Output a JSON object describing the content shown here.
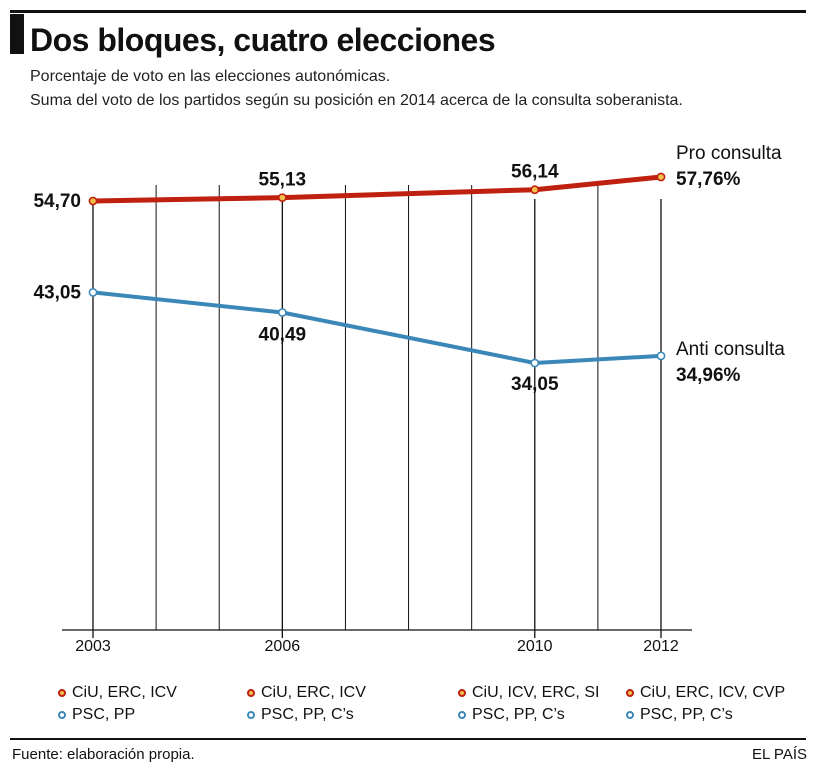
{
  "header": {
    "title": "Dos bloques, cuatro elecciones",
    "subtitle_line1": "Porcentaje de voto en las elecciones autonómicas.",
    "subtitle_line2": "Suma del voto de los partidos según su posición en 2014 acerca de la consulta soberanista."
  },
  "chart_data": {
    "type": "line",
    "x": [
      2003,
      2006,
      2010,
      2012
    ],
    "series": [
      {
        "name": "Pro consulta",
        "color": "#c0200f",
        "values": [
          54.7,
          55.13,
          56.14,
          57.76
        ],
        "labels": [
          "54,70",
          "55,13",
          "56,14",
          "57,76%"
        ]
      },
      {
        "name": "Anti consulta",
        "color": "#3b88b8",
        "values": [
          43.05,
          40.49,
          34.05,
          34.96
        ],
        "labels": [
          "43,05",
          "40,49",
          "34,05",
          "34,96%"
        ]
      }
    ],
    "xlim": [
      2002,
      2013
    ],
    "grid": "vertical",
    "legend": "end-of-line labels"
  },
  "legend": {
    "pro_dot_color": "#c0200f",
    "anti_dot_color": "#3b88b8",
    "columns": [
      {
        "pro": "CiU, ERC, ICV",
        "anti": "PSC, PP"
      },
      {
        "pro": "CiU, ERC, ICV",
        "anti": "PSC, PP, C’s"
      },
      {
        "pro": "CiU, ICV, ERC, SI",
        "anti": "PSC, PP, C’s"
      },
      {
        "pro": "CiU, ERC, ICV, CVP",
        "anti": "PSC, PP, C’s"
      }
    ]
  },
  "footer": {
    "source": "Fuente: elaboración propia.",
    "brand": "EL PAÍS"
  }
}
